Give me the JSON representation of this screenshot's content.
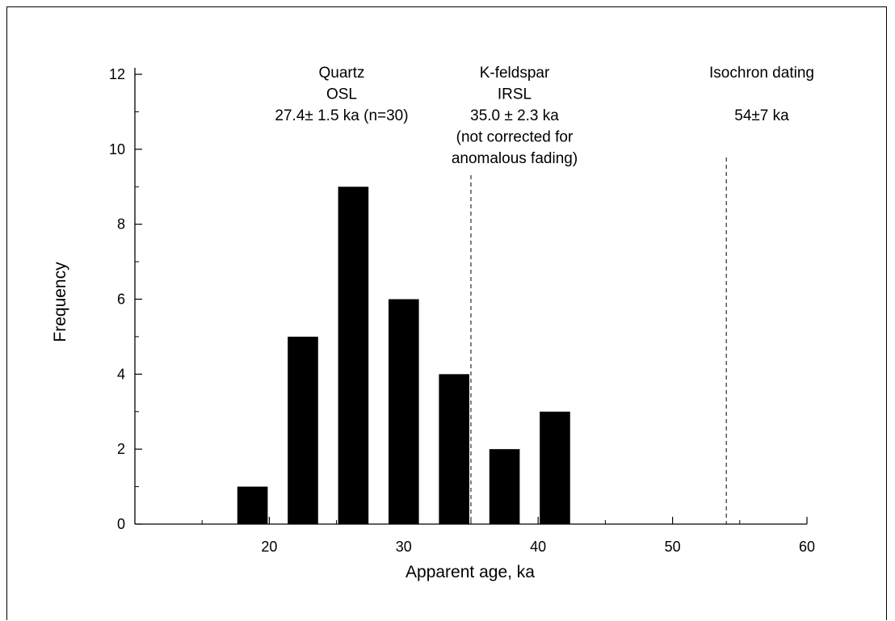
{
  "chart_data": {
    "type": "bar",
    "xlabel": "Apparent age, ka",
    "ylabel": "Frequency",
    "xlim": [
      10,
      60
    ],
    "ylim": [
      0,
      12
    ],
    "x_ticks": [
      20,
      30,
      40,
      50,
      60
    ],
    "y_ticks": [
      0,
      2,
      4,
      6,
      8,
      10,
      12
    ],
    "bin_width": 2.5,
    "bars": [
      {
        "x": 18.75,
        "value": 1
      },
      {
        "x": 22.5,
        "value": 5
      },
      {
        "x": 26.25,
        "value": 9
      },
      {
        "x": 30.0,
        "value": 6
      },
      {
        "x": 33.75,
        "value": 4
      },
      {
        "x": 37.5,
        "value": 2
      },
      {
        "x": 41.25,
        "value": 3
      }
    ],
    "reference_lines": [
      {
        "x": 35.0,
        "style": "dashed"
      },
      {
        "x": 54.0,
        "style": "dashed"
      }
    ],
    "annotations": [
      {
        "lines": [
          "Quartz",
          "OSL",
          "27.4± 1.5 ka (n=30)"
        ]
      },
      {
        "lines": [
          "K-feldspar",
          "IRSL",
          "35.0 ± 2.3 ka",
          "(not corrected for",
          "anomalous fading)"
        ]
      },
      {
        "lines": [
          "Isochron dating",
          "",
          "54±7 ka"
        ]
      }
    ]
  }
}
